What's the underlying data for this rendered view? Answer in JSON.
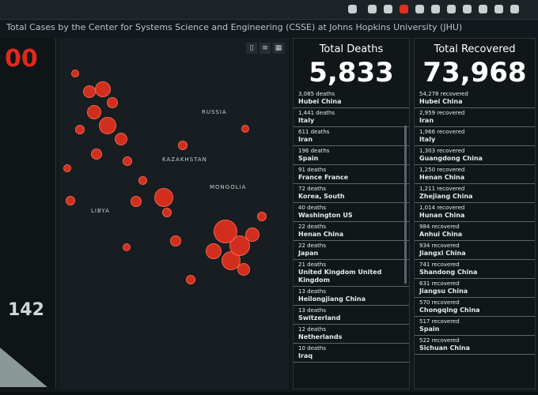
{
  "header": {
    "title": "Total Cases by the Center for Systems Science and Engineering (CSSE) at Johns Hopkins University (JHU)",
    "confirmed_partial": "00",
    "left_count": "142"
  },
  "map": {
    "labels": [
      "RUSSIA",
      "KAZAKHSTAN",
      "MONGOLIA",
      "LIBYA"
    ]
  },
  "deaths": {
    "title": "Total Deaths",
    "total": "5,833",
    "items": [
      {
        "value": "3,085 deaths",
        "place": "Hubei China"
      },
      {
        "value": "1,441 deaths",
        "place": "Italy"
      },
      {
        "value": "611 deaths",
        "place": "Iran"
      },
      {
        "value": "196 deaths",
        "place": "Spain"
      },
      {
        "value": "91 deaths",
        "place": "France France"
      },
      {
        "value": "72 deaths",
        "place": "Korea, South"
      },
      {
        "value": "40 deaths",
        "place": "Washington US"
      },
      {
        "value": "22 deaths",
        "place": "Henan China"
      },
      {
        "value": "22 deaths",
        "place": "Japan"
      },
      {
        "value": "21 deaths",
        "place": "United Kingdom United Kingdom"
      },
      {
        "value": "13 deaths",
        "place": "Heilongjiang China"
      },
      {
        "value": "13 deaths",
        "place": "Switzerland"
      },
      {
        "value": "12 deaths",
        "place": "Netherlands"
      },
      {
        "value": "10 deaths",
        "place": "Iraq"
      }
    ]
  },
  "recovered": {
    "title": "Total Recovered",
    "total": "73,968",
    "items": [
      {
        "value": "54,278 recovered",
        "place": "Hubei China"
      },
      {
        "value": "2,959 recovered",
        "place": "Iran"
      },
      {
        "value": "1,966 recovered",
        "place": "Italy"
      },
      {
        "value": "1,303 recovered",
        "place": "Guangdong China"
      },
      {
        "value": "1,250 recovered",
        "place": "Henan China"
      },
      {
        "value": "1,211 recovered",
        "place": "Zhejiang China"
      },
      {
        "value": "1,014 recovered",
        "place": "Hunan China"
      },
      {
        "value": "984 recovered",
        "place": "Anhui China"
      },
      {
        "value": "934 recovered",
        "place": "Jiangxi China"
      },
      {
        "value": "741 recovered",
        "place": "Shandong China"
      },
      {
        "value": "631 recovered",
        "place": "Jiangsu China"
      },
      {
        "value": "570 recovered",
        "place": "Chongqing China"
      },
      {
        "value": "517 recovered",
        "place": "Spain"
      },
      {
        "value": "522 recovered",
        "place": "Sichuan China"
      }
    ]
  },
  "colors": {
    "accent": "#e2301e",
    "background": "#12181b"
  }
}
